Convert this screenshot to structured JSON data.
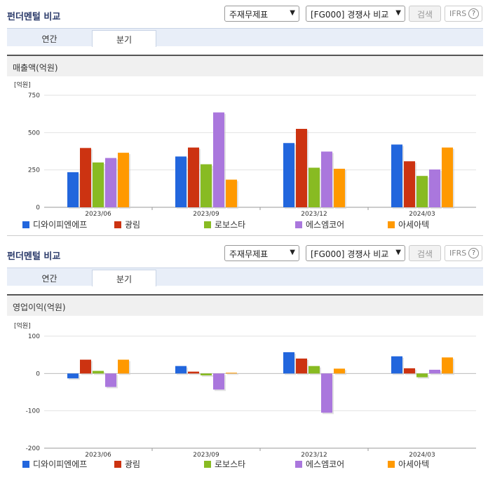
{
  "panels": [
    {
      "title": "펀더멘털 비교",
      "select_statement": "주재무제표",
      "select_compare": "[FG000] 경쟁사 비교",
      "search_label": "검색",
      "ifrs_label": "IFRS",
      "ifrs_help": "?",
      "tabs": [
        "연간",
        "분기"
      ],
      "active_tab": 1,
      "metric_label": "매출액(억원)"
    },
    {
      "title": "펀더멘털 비교",
      "select_statement": "주재무제표",
      "select_compare": "[FG000] 경쟁사 비교",
      "search_label": "검색",
      "ifrs_label": "IFRS",
      "ifrs_help": "?",
      "tabs": [
        "연간",
        "분기"
      ],
      "active_tab": 1,
      "metric_label": "영업이익(억원)"
    }
  ],
  "colors": [
    "#2266dd",
    "#cc3311",
    "#88bb22",
    "#aa77dd",
    "#ff9900"
  ],
  "chart_data": [
    {
      "type": "bar",
      "unit_label": "[억원]",
      "categories": [
        "2023/06",
        "2023/09",
        "2023/12",
        "2024/03"
      ],
      "ylim": [
        0,
        750
      ],
      "yticks": [
        0,
        250,
        500,
        750
      ],
      "grid": true,
      "legend": "bottom",
      "series": [
        {
          "name": "디와이피엔에프",
          "values": [
            235,
            340,
            430,
            420
          ]
        },
        {
          "name": "광림",
          "values": [
            397,
            400,
            525,
            308
          ]
        },
        {
          "name": "로보스타",
          "values": [
            300,
            288,
            265,
            210
          ]
        },
        {
          "name": "에스엠코어",
          "values": [
            330,
            635,
            373,
            253
          ]
        },
        {
          "name": "아세아텍",
          "values": [
            365,
            185,
            258,
            400
          ]
        }
      ]
    },
    {
      "type": "bar",
      "unit_label": "[억원]",
      "categories": [
        "2023/06",
        "2023/09",
        "2023/12",
        "2024/03"
      ],
      "ylim": [
        -200,
        100
      ],
      "yticks": [
        -200,
        -100,
        0,
        100
      ],
      "grid": true,
      "legend": "bottom",
      "series": [
        {
          "name": "디와이피엔에프",
          "values": [
            -13,
            20,
            57,
            46
          ]
        },
        {
          "name": "광림",
          "values": [
            37,
            5,
            40,
            14
          ]
        },
        {
          "name": "로보스타",
          "values": [
            7,
            -5,
            20,
            -10
          ]
        },
        {
          "name": "에스엠코어",
          "values": [
            -36,
            -43,
            -105,
            10
          ]
        },
        {
          "name": "아세아텍",
          "values": [
            37,
            2,
            13,
            43
          ]
        }
      ]
    }
  ]
}
